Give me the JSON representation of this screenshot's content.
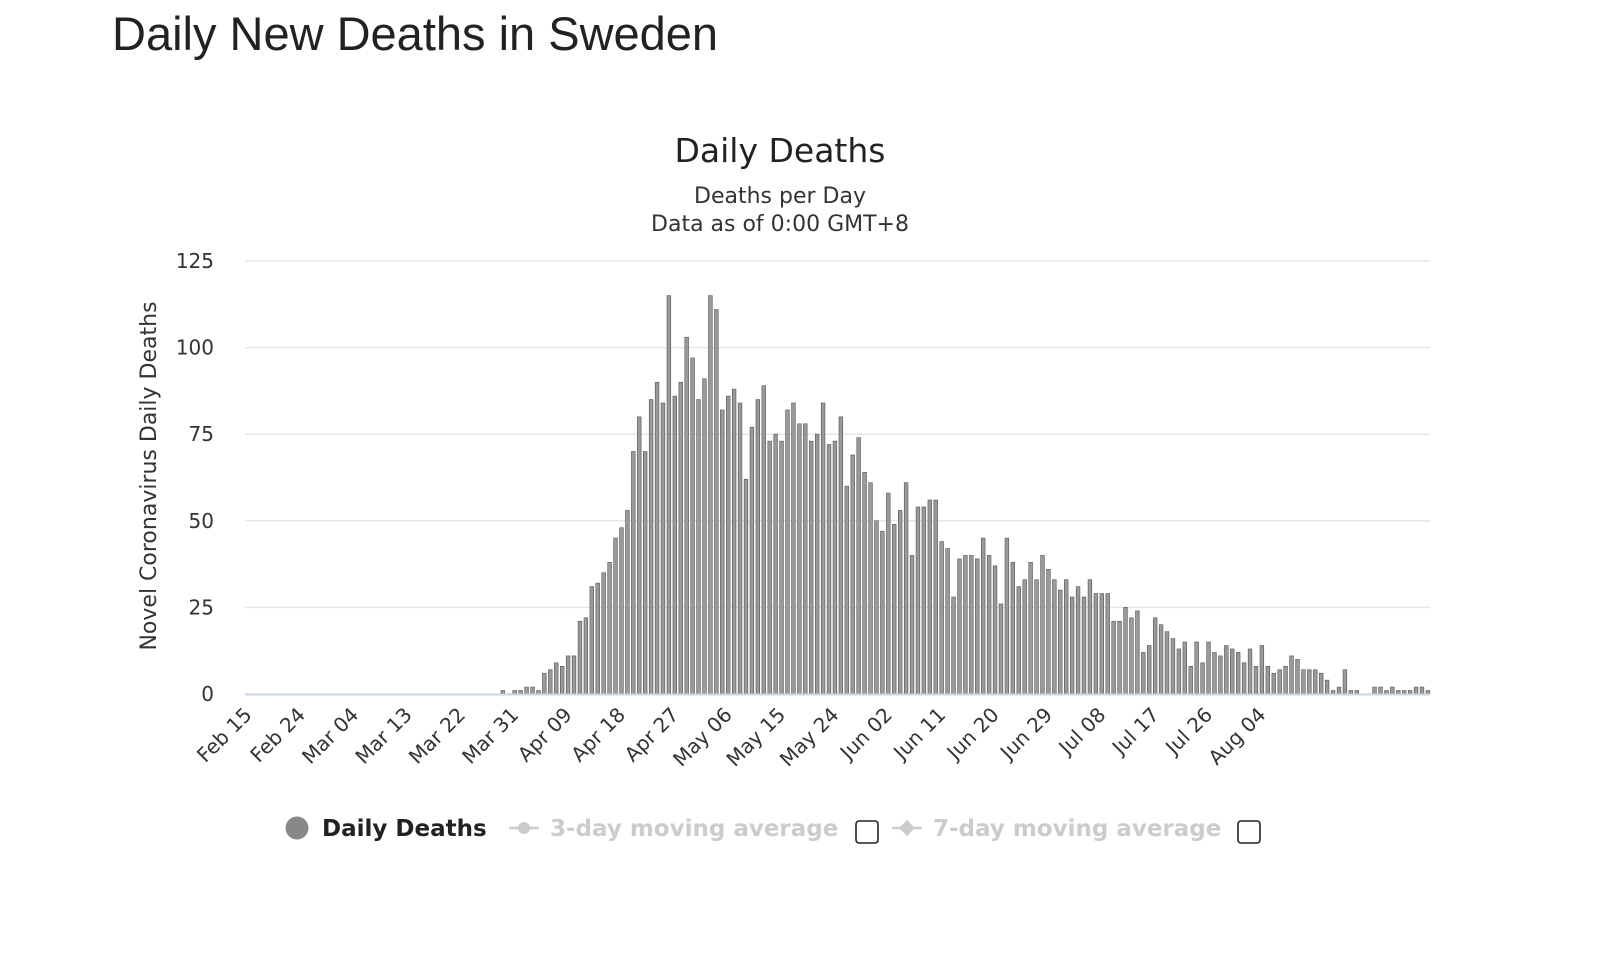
{
  "page": {
    "title": "Daily New Deaths in Sweden"
  },
  "colors": {
    "bar": "#9a9a9a",
    "bar_stroke": "#555555",
    "grid": "#e6e6e6",
    "axis": "#ccd6eb",
    "legend_inactive": "#cccccc"
  },
  "chart_data": {
    "type": "bar",
    "title": "Daily Deaths",
    "subtitle_lines": [
      "Deaths per Day",
      "Data as of 0:00 GMT+8"
    ],
    "xlabel": "",
    "ylabel": "Novel Coronavirus Daily Deaths",
    "ylim": [
      0,
      125
    ],
    "y_ticks": [
      0,
      25,
      50,
      75,
      100,
      125
    ],
    "x_start": "2020-02-15",
    "x_tick_labels": [
      "Feb 15",
      "Feb 24",
      "Mar 04",
      "Mar 13",
      "Mar 22",
      "Mar 31",
      "Apr 09",
      "Apr 18",
      "Apr 27",
      "May 06",
      "May 15",
      "May 24",
      "Jun 02",
      "Jun 11",
      "Jun 20",
      "Jun 29",
      "Jul 08",
      "Jul 17",
      "Jul 26",
      "Aug 04"
    ],
    "grid": true,
    "legend_position": "bottom",
    "legend": [
      {
        "label": "Daily Deaths",
        "active": true,
        "icon": "filled-circle-icon"
      },
      {
        "label": "3-day moving average",
        "active": false,
        "icon": "line-circle-icon",
        "checkbox": false
      },
      {
        "label": "7-day moving average",
        "active": false,
        "icon": "line-diamond-icon",
        "checkbox": false
      }
    ],
    "series": [
      {
        "name": "Daily Deaths",
        "values": [
          0,
          0,
          0,
          0,
          0,
          0,
          0,
          0,
          0,
          0,
          0,
          0,
          0,
          0,
          0,
          0,
          0,
          0,
          0,
          0,
          0,
          0,
          0,
          0,
          0,
          0,
          0,
          0,
          0,
          0,
          0,
          0,
          0,
          0,
          0,
          0,
          0,
          0,
          0,
          0,
          0,
          0,
          0,
          1,
          0,
          1,
          1,
          2,
          2,
          1,
          6,
          7,
          9,
          8,
          11,
          11,
          21,
          22,
          31,
          32,
          35,
          38,
          45,
          48,
          53,
          70,
          80,
          70,
          85,
          90,
          84,
          115,
          86,
          90,
          103,
          97,
          85,
          91,
          115,
          111,
          82,
          86,
          88,
          84,
          62,
          77,
          85,
          89,
          73,
          75,
          73,
          82,
          84,
          78,
          78,
          73,
          75,
          84,
          72,
          73,
          80,
          60,
          69,
          74,
          64,
          61,
          50,
          47,
          58,
          49,
          53,
          61,
          40,
          54,
          54,
          56,
          56,
          44,
          42,
          28,
          39,
          40,
          40,
          39,
          45,
          40,
          37,
          26,
          45,
          38,
          31,
          33,
          38,
          33,
          40,
          36,
          33,
          30,
          33,
          28,
          31,
          28,
          33,
          29,
          29,
          29,
          21,
          21,
          25,
          22,
          24,
          12,
          14,
          22,
          20,
          18,
          16,
          13,
          15,
          8,
          15,
          9,
          15,
          12,
          11,
          14,
          13,
          12,
          9,
          13,
          8,
          14,
          8,
          6,
          7,
          8,
          11,
          10,
          7,
          7,
          7,
          6,
          4,
          1,
          2,
          7,
          1,
          1,
          0,
          0,
          2,
          2,
          1,
          2,
          1,
          1,
          1,
          2,
          2,
          1
        ]
      }
    ]
  }
}
